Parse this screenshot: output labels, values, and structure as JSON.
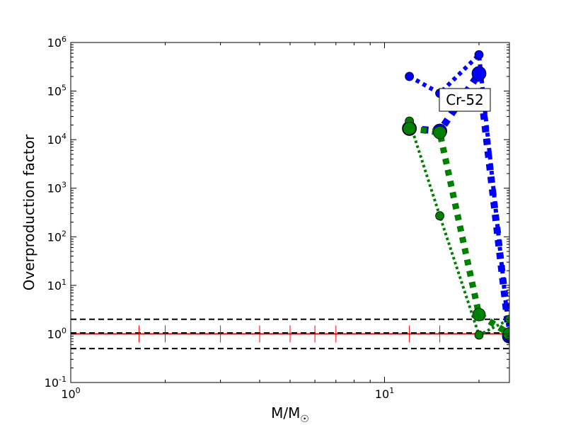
{
  "chart_data": {
    "type": "line",
    "title": "",
    "xlabel": "M/M",
    "xlabel_symbol": "☉",
    "ylabel": "Overproduction factor",
    "xscale": "log",
    "yscale": "log",
    "xlim": [
      1,
      25
    ],
    "ylim": [
      0.1,
      1000000
    ],
    "x_ticks": [
      {
        "value": 1,
        "base": "10",
        "exp": "0"
      },
      {
        "value": 10,
        "base": "10",
        "exp": "1"
      }
    ],
    "y_ticks": [
      {
        "value": 0.1,
        "base": "10",
        "exp": "-1"
      },
      {
        "value": 1,
        "base": "10",
        "exp": "0"
      },
      {
        "value": 10,
        "base": "10",
        "exp": "1"
      },
      {
        "value": 100,
        "base": "10",
        "exp": "2"
      },
      {
        "value": 1000,
        "base": "10",
        "exp": "3"
      },
      {
        "value": 10000,
        "base": "10",
        "exp": "4"
      },
      {
        "value": 100000,
        "base": "10",
        "exp": "5"
      },
      {
        "value": 1000000,
        "base": "10",
        "exp": "6"
      }
    ],
    "annotation": "Cr-52",
    "reference_lines": [
      {
        "y": 1,
        "color": "#ff0000",
        "style": "solid"
      },
      {
        "y": 2,
        "color": "#000000",
        "style": "dashed"
      },
      {
        "y": 1.05,
        "color": "#000000",
        "style": "dashed"
      },
      {
        "y": 0.5,
        "color": "#000000",
        "style": "dashed"
      }
    ],
    "red_marker_x": [
      1.65,
      2,
      3,
      4,
      5,
      6,
      7,
      12,
      15
    ],
    "series": [
      {
        "color": "#0000ff",
        "style": "dotted",
        "width": 6,
        "marker_size": 6,
        "x": [
          12,
          15,
          20,
          25
        ],
        "y": [
          200000,
          90000,
          560000,
          0.9
        ]
      },
      {
        "color": "#0000ff",
        "style": "dotted",
        "width": 10,
        "marker_size": 10,
        "x": [
          12,
          15,
          20,
          25
        ],
        "y": [
          17000,
          15000,
          230000,
          0.9
        ]
      },
      {
        "color": "#008000",
        "style": "dotted",
        "width": 4,
        "marker_size": 6,
        "x": [
          12,
          15,
          20,
          25
        ],
        "y": [
          24000,
          270,
          0.95,
          2.0
        ]
      },
      {
        "color": "#008000",
        "style": "dotted",
        "width": 9,
        "marker_size": 9,
        "x": [
          12,
          15,
          20,
          25
        ],
        "y": [
          17000,
          14000,
          2.5,
          1.0
        ]
      }
    ]
  }
}
